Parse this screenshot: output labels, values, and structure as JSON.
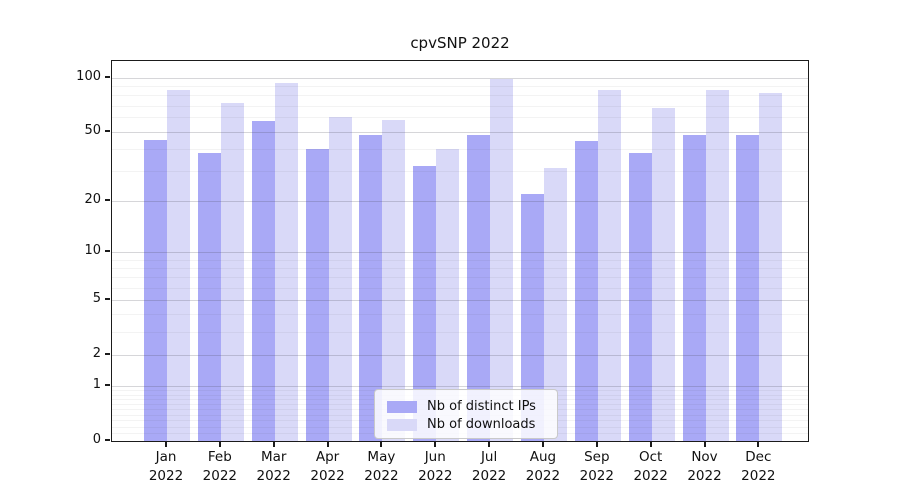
{
  "chart_data": {
    "type": "bar",
    "title": "cpvSNP 2022",
    "categories": [
      "Jan 2022",
      "Feb 2022",
      "Mar 2022",
      "Apr 2022",
      "May 2022",
      "Jun 2022",
      "Jul 2022",
      "Aug 2022",
      "Sep 2022",
      "Oct 2022",
      "Nov 2022",
      "Dec 2022"
    ],
    "series": [
      {
        "name": "Nb of distinct IPs",
        "color": "#a9a9f6",
        "values": [
          45,
          38,
          57,
          40,
          48,
          32,
          48,
          22,
          44,
          38,
          48,
          48
        ]
      },
      {
        "name": "Nb of downloads",
        "color": "#d9d9f8",
        "values": [
          85,
          72,
          94,
          60,
          58,
          40,
          98,
          31,
          85,
          68,
          86,
          82
        ]
      }
    ],
    "xlabel": "",
    "ylabel": "",
    "y_scale": "log10(1+x)",
    "y_ticks": [
      0,
      1,
      2,
      5,
      10,
      20,
      50,
      100
    ],
    "y_minor_ticks": [
      0.1,
      0.2,
      0.3,
      0.4,
      0.5,
      0.6,
      0.7,
      0.8,
      0.9,
      3,
      4,
      6,
      7,
      8,
      9,
      30,
      40,
      60,
      70,
      80,
      90
    ],
    "ylim": [
      0,
      124
    ],
    "grid": true,
    "legend_position": "lower center",
    "background_color": "#ffffff",
    "axis_color": "#1b1b1b",
    "grid_major_color": "#d6d6d9",
    "grid_minor_color": "#efeff1"
  }
}
